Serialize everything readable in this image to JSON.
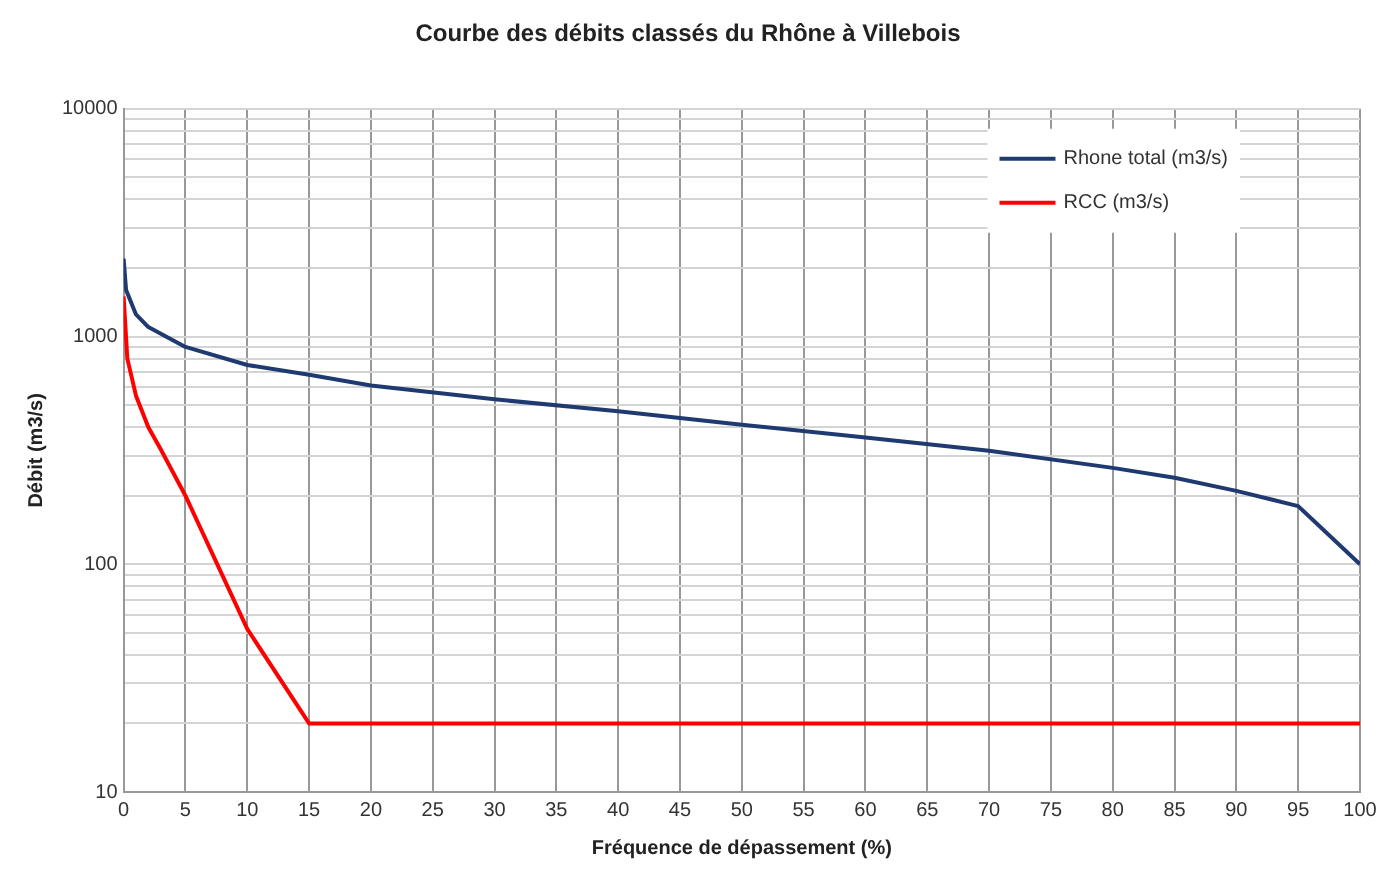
{
  "chart_data": {
    "type": "line",
    "title": "Courbe des débits classés du Rhône à Villebois",
    "xlabel": "Fréquence de dépassement (%)",
    "ylabel": "Débit (m3/s)",
    "series": [
      {
        "name": "Rhone total (m3/s)",
        "color": "#1f3a70",
        "x": [
          0,
          0.2,
          1,
          2,
          5,
          10,
          15,
          20,
          30,
          40,
          50,
          60,
          70,
          80,
          85,
          90,
          95,
          100
        ],
        "values": [
          2200,
          1600,
          1250,
          1100,
          900,
          750,
          680,
          610,
          530,
          470,
          410,
          360,
          315,
          265,
          240,
          210,
          180,
          100
        ]
      },
      {
        "name": "RCC (m3/s)",
        "color": "#ff0000",
        "x": [
          0,
          0.3,
          1,
          2,
          3,
          5,
          10,
          15,
          100
        ],
        "values": [
          1500,
          800,
          550,
          400,
          320,
          200,
          52,
          20,
          20
        ]
      }
    ],
    "xlim": [
      0,
      100
    ],
    "xticks": [
      0,
      5,
      10,
      15,
      20,
      25,
      30,
      35,
      40,
      45,
      50,
      55,
      60,
      65,
      70,
      75,
      80,
      85,
      90,
      95,
      100
    ],
    "ylim": [
      10,
      10000
    ],
    "yticks": [
      10,
      {
        "value": 20,
        "label": null
      },
      {
        "value": 30,
        "label": null
      },
      {
        "value": 40,
        "label": null
      },
      {
        "value": 50,
        "label": null
      },
      {
        "value": 60,
        "label": null
      },
      {
        "value": 70,
        "label": null
      },
      {
        "value": 80,
        "label": null
      },
      {
        "value": 90,
        "label": null
      },
      100,
      {
        "value": 200,
        "label": null
      },
      {
        "value": 300,
        "label": null
      },
      {
        "value": 400,
        "label": null
      },
      {
        "value": 500,
        "label": null
      },
      {
        "value": 600,
        "label": null
      },
      {
        "value": 700,
        "label": null
      },
      {
        "value": 800,
        "label": null
      },
      {
        "value": 900,
        "label": null
      },
      1000,
      {
        "value": 2000,
        "label": null
      },
      {
        "value": 3000,
        "label": null
      },
      {
        "value": 4000,
        "label": null
      },
      {
        "value": 5000,
        "label": null
      },
      {
        "value": 6000,
        "label": null
      },
      {
        "value": 7000,
        "label": null
      },
      {
        "value": 8000,
        "label": null
      },
      {
        "value": 9000,
        "label": null
      },
      10000
    ],
    "log": true,
    "grid": true,
    "legend": "top right",
    "marker": "none",
    "line_style": "solid"
  }
}
